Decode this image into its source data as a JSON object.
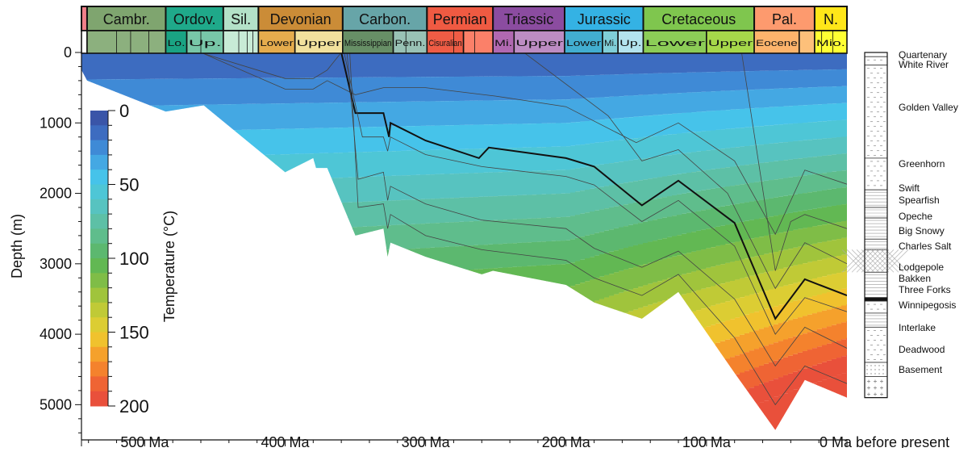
{
  "chart_data": {
    "type": "area",
    "title": "",
    "xlabel": "",
    "ylabel": "Depth (m)",
    "x_unit_suffix": "Ma",
    "x_end_label": "0 Ma before present",
    "xlim": [
      545,
      0
    ],
    "ylim": [
      0,
      5500
    ],
    "x_ticks": [
      500,
      400,
      300,
      200,
      100
    ],
    "y_ticks": [
      0,
      1000,
      2000,
      3000,
      4000,
      5000
    ],
    "colorbar": {
      "label": "Temperature (°C)",
      "ticks": [
        0,
        50,
        100,
        150,
        200
      ],
      "range": [
        0,
        200
      ],
      "colors": [
        "#3a55a8",
        "#3d6cc0",
        "#3f8ad6",
        "#44a8e3",
        "#46c3ea",
        "#4ec6d6",
        "#57c3c0",
        "#5dc0a6",
        "#5fbd8c",
        "#5cb86f",
        "#62b853",
        "#7fbd47",
        "#a0c43c",
        "#c0ca36",
        "#dccd33",
        "#f0c22e",
        "#f5a12c",
        "#f4822d",
        "#ef6434",
        "#e9503b"
      ]
    },
    "periods": [
      {
        "label": "",
        "start": 545,
        "end": 541,
        "color": "#f0808a"
      },
      {
        "label": "Cambr.",
        "start": 541,
        "end": 485,
        "color": "#7fa56f"
      },
      {
        "label": "Ordov.",
        "start": 485,
        "end": 444,
        "color": "#1fa98a"
      },
      {
        "label": "Sil.",
        "start": 444,
        "end": 419,
        "color": "#b3e1c8"
      },
      {
        "label": "Devonian",
        "start": 419,
        "end": 359,
        "color": "#cb8c37"
      },
      {
        "label": "Carbon.",
        "start": 359,
        "end": 299,
        "color": "#67a5a8"
      },
      {
        "label": "Permian",
        "start": 299,
        "end": 252,
        "color": "#ef5a42"
      },
      {
        "label": "Triassic",
        "start": 252,
        "end": 201,
        "color": "#8b4ca0"
      },
      {
        "label": "Jurassic",
        "start": 201,
        "end": 145,
        "color": "#34b2e4"
      },
      {
        "label": "Cretaceous",
        "start": 145,
        "end": 66,
        "color": "#7fc64e"
      },
      {
        "label": "Pal.",
        "start": 66,
        "end": 23,
        "color": "#fd9a6e"
      },
      {
        "label": "N.",
        "start": 23,
        "end": 0,
        "color": "#ffe619"
      }
    ],
    "epochs": [
      {
        "label": "",
        "start": 545,
        "end": 541,
        "color": "#ffffff"
      },
      {
        "label": "",
        "start": 541,
        "end": 485,
        "color": "#8cb07e"
      },
      {
        "label": "Lo.",
        "start": 485,
        "end": 470,
        "color": "#1aa383"
      },
      {
        "label": "Up.",
        "start": 470,
        "end": 444,
        "color": "#78c7a8"
      },
      {
        "label": "",
        "start": 444,
        "end": 419,
        "color": "#c8ebd6"
      },
      {
        "label": "Lower",
        "start": 419,
        "end": 393,
        "color": "#e5ac4d"
      },
      {
        "label": "Upper",
        "start": 393,
        "end": 359,
        "color": "#f1e19d"
      },
      {
        "label": "Mississippian",
        "start": 359,
        "end": 323,
        "color": "#678f66"
      },
      {
        "label": "Penn.",
        "start": 323,
        "end": 299,
        "color": "#99c2b5"
      },
      {
        "label": "Cisuralian",
        "start": 299,
        "end": 273,
        "color": "#ef5c45"
      },
      {
        "label": "",
        "start": 273,
        "end": 252,
        "color": "#fb8069"
      },
      {
        "label": "Mi.",
        "start": 252,
        "end": 237,
        "color": "#b168b1"
      },
      {
        "label": "Upper",
        "start": 237,
        "end": 201,
        "color": "#bd8cc3"
      },
      {
        "label": "Lower",
        "start": 201,
        "end": 174,
        "color": "#42aed0"
      },
      {
        "label": "Mi.",
        "start": 174,
        "end": 163,
        "color": "#80cfd8"
      },
      {
        "label": "Up.",
        "start": 163,
        "end": 145,
        "color": "#b3e3ee"
      },
      {
        "label": "Lower",
        "start": 145,
        "end": 100,
        "color": "#8ccd57"
      },
      {
        "label": "Upper",
        "start": 100,
        "end": 66,
        "color": "#a6d84a"
      },
      {
        "label": "Eocene",
        "start": 66,
        "end": 34,
        "color": "#fdb46c"
      },
      {
        "label": "",
        "start": 34,
        "end": 23,
        "color": "#fdc07a"
      },
      {
        "label": "Mio.",
        "start": 23,
        "end": 0,
        "color": "#ffff33"
      }
    ],
    "basin_bottom": [
      [
        545,
        250
      ],
      [
        541,
        400
      ],
      [
        485,
        840
      ],
      [
        458,
        750
      ],
      [
        400,
        1700
      ],
      [
        380,
        1500
      ],
      [
        378,
        1640
      ],
      [
        370,
        1640
      ],
      [
        350,
        2600
      ],
      [
        330,
        2500
      ],
      [
        327,
        2900
      ],
      [
        325,
        2700
      ],
      [
        300,
        2900
      ],
      [
        260,
        3150
      ],
      [
        252,
        3100
      ],
      [
        200,
        3300
      ],
      [
        180,
        3550
      ],
      [
        146,
        3780
      ],
      [
        120,
        3400
      ],
      [
        80,
        4550
      ],
      [
        51,
        5360
      ],
      [
        30,
        4650
      ],
      [
        0,
        4900
      ]
    ],
    "horizons": [
      {
        "name": "",
        "points": [
          [
            545,
            0
          ],
          [
            541,
            5
          ],
          [
            460,
            5
          ],
          [
            400,
            370
          ],
          [
            380,
            370
          ],
          [
            370,
            250
          ],
          [
            360,
            0
          ]
        ]
      },
      {
        "name": "",
        "points": [
          [
            460,
            0
          ],
          [
            400,
            520
          ],
          [
            380,
            520
          ],
          [
            370,
            400
          ],
          [
            350,
            600
          ],
          [
            330,
            500
          ],
          [
            300,
            500
          ],
          [
            250,
            620
          ],
          [
            200,
            770
          ],
          [
            150,
            1280
          ],
          [
            120,
            1000
          ],
          [
            80,
            1540
          ],
          [
            51,
            2580
          ],
          [
            30,
            1670
          ],
          [
            0,
            1870
          ]
        ]
      },
      {
        "name": "",
        "points": [
          [
            360,
            0
          ],
          [
            350,
            860
          ],
          [
            330,
            860
          ],
          [
            326,
            1200
          ],
          [
            325,
            1000
          ],
          [
            300,
            1250
          ],
          [
            262,
            1500
          ],
          [
            255,
            1350
          ],
          [
            200,
            1500
          ],
          [
            180,
            1620
          ],
          [
            146,
            2170
          ],
          [
            120,
            1820
          ],
          [
            80,
            2420
          ],
          [
            51,
            3780
          ],
          [
            30,
            3220
          ],
          [
            0,
            3450
          ]
        ]
      },
      {
        "name": "",
        "points": [
          [
            358,
            0
          ],
          [
            345,
            1200
          ],
          [
            330,
            1200
          ],
          [
            327,
            1400
          ],
          [
            325,
            1200
          ],
          [
            300,
            1450
          ],
          [
            260,
            1620
          ],
          [
            200,
            1760
          ],
          [
            180,
            1880
          ],
          [
            146,
            2400
          ],
          [
            120,
            2100
          ],
          [
            80,
            2750
          ],
          [
            51,
            4000
          ],
          [
            30,
            3480
          ],
          [
            0,
            3680
          ]
        ]
      },
      {
        "name": "",
        "points": [
          [
            356,
            0
          ],
          [
            348,
            1800
          ],
          [
            330,
            1700
          ],
          [
            327,
            2100
          ],
          [
            325,
            1900
          ],
          [
            300,
            2150
          ],
          [
            260,
            2380
          ],
          [
            200,
            2500
          ],
          [
            180,
            2780
          ],
          [
            146,
            3050
          ],
          [
            120,
            2820
          ],
          [
            80,
            3500
          ],
          [
            51,
            4450
          ],
          [
            30,
            3900
          ],
          [
            0,
            4200
          ]
        ]
      },
      {
        "name": "",
        "points": [
          [
            354,
            0
          ],
          [
            348,
            2200
          ],
          [
            330,
            2150
          ],
          [
            327,
            2500
          ],
          [
            325,
            2300
          ],
          [
            300,
            2600
          ],
          [
            260,
            2800
          ],
          [
            200,
            2950
          ],
          [
            180,
            3200
          ],
          [
            146,
            3450
          ],
          [
            120,
            3150
          ],
          [
            80,
            4050
          ],
          [
            51,
            5000
          ],
          [
            30,
            4450
          ],
          [
            0,
            4700
          ]
        ]
      },
      {
        "name": "",
        "points": [
          [
            230,
            0
          ],
          [
            170,
            900
          ],
          [
            146,
            1540
          ],
          [
            120,
            1380
          ],
          [
            85,
            2000
          ],
          [
            51,
            3350
          ],
          [
            30,
            2700
          ],
          [
            0,
            3000
          ]
        ]
      },
      {
        "name": "",
        "points": [
          [
            75,
            0
          ],
          [
            51,
            3100
          ],
          [
            40,
            2400
          ],
          [
            30,
            2300
          ],
          [
            0,
            2500
          ]
        ]
      }
    ],
    "column": {
      "top": 0,
      "bottom": 4900,
      "units": [
        {
          "name": "Quartenary",
          "top": 0,
          "bottom": 60,
          "pattern": "plain"
        },
        {
          "name": "White River",
          "top": 60,
          "bottom": 180,
          "pattern": "dash"
        },
        {
          "name": "Golden Valley",
          "top": 180,
          "bottom": 1500,
          "pattern": "dash"
        },
        {
          "name": "Greenhorn",
          "top": 1500,
          "bottom": 1950,
          "pattern": "dash"
        },
        {
          "name": "Swift",
          "top": 1950,
          "bottom": 2200,
          "pattern": "hline"
        },
        {
          "name": "Spearfish",
          "top": 2200,
          "bottom": 2350,
          "pattern": "brick"
        },
        {
          "name": "Opeche",
          "top": 2350,
          "bottom": 2650,
          "pattern": "brick"
        },
        {
          "name": "Big Snowy",
          "top": 2650,
          "bottom": 2800,
          "pattern": "hline"
        },
        {
          "name": "Charles Salt",
          "top": 2800,
          "bottom": 3120,
          "pattern": "cross"
        },
        {
          "name": "Lodgepole",
          "top": 3120,
          "bottom": 3480,
          "pattern": "brick"
        },
        {
          "name": "Bakken",
          "top": 3480,
          "bottom": 3530,
          "pattern": "black"
        },
        {
          "name": "Three Forks",
          "top": 3530,
          "bottom": 3700,
          "pattern": "dash"
        },
        {
          "name": "Winnipegosis",
          "top": 3700,
          "bottom": 3900,
          "pattern": "brick"
        },
        {
          "name": "Interlake",
          "top": 3900,
          "bottom": 4400,
          "pattern": "dash"
        },
        {
          "name": "Deadwood",
          "top": 4400,
          "bottom": 4600,
          "pattern": "dot"
        },
        {
          "name": "Basement",
          "top": 4600,
          "bottom": 4900,
          "pattern": "plus"
        }
      ]
    }
  }
}
